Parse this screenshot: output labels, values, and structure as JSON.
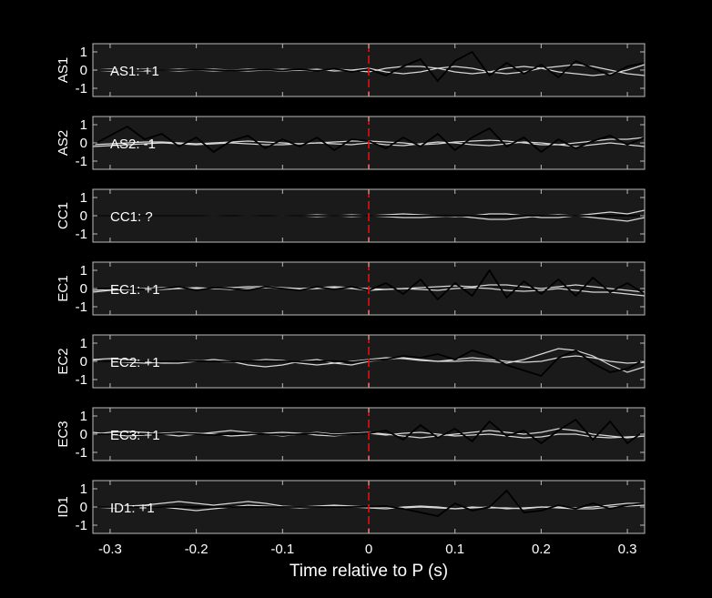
{
  "chart_data": [
    {
      "type": "line",
      "ylabel": "AS1",
      "annotation": "AS1: +1",
      "annotation_color": "#d01010",
      "x": [
        -0.32,
        -0.3,
        -0.28,
        -0.26,
        -0.24,
        -0.22,
        -0.2,
        -0.18,
        -0.16,
        -0.14,
        -0.12,
        -0.1,
        -0.08,
        -0.06,
        -0.04,
        -0.02,
        0,
        0.02,
        0.04,
        0.06,
        0.08,
        0.1,
        0.12,
        0.14,
        0.16,
        0.18,
        0.2,
        0.22,
        0.24,
        0.26,
        0.28,
        0.3,
        0.32
      ],
      "xlim": [
        -0.32,
        0.32
      ],
      "ylim": [
        -1.45,
        1.45
      ],
      "yticks": [
        -1,
        0,
        1
      ],
      "vline": 0,
      "series": [
        {
          "color": "#d8d8d8",
          "values": [
            0,
            0.05,
            0,
            -0.05,
            0,
            0.05,
            0,
            -0.05,
            0,
            0.05,
            0,
            -0.05,
            0,
            0.05,
            -0.05,
            0,
            0.1,
            -0.1,
            -0.2,
            -0.1,
            0.1,
            0.2,
            0.1,
            -0.1,
            -0.2,
            -0.1,
            0.1,
            0.2,
            0.3,
            0.2,
            0,
            -0.2,
            -0.3
          ]
        },
        {
          "color": "#d8d8d8",
          "values": [
            0,
            -0.05,
            0,
            0.05,
            0,
            -0.05,
            0,
            0.05,
            0,
            -0.05,
            0,
            0.05,
            0,
            -0.05,
            0.05,
            0,
            -0.1,
            0.1,
            0.2,
            0.2,
            0.1,
            -0.1,
            -0.2,
            -0.1,
            0.1,
            0.2,
            0.1,
            -0.1,
            -0.2,
            -0.3,
            -0.2,
            0,
            0.3
          ]
        },
        {
          "color": "#000000",
          "values": [
            0,
            0,
            0,
            0,
            0,
            0,
            0.02,
            0,
            -0.02,
            0,
            0.03,
            -0.02,
            0.05,
            -0.05,
            0.08,
            -0.1,
            0.05,
            -0.3,
            0.2,
            0.6,
            -0.6,
            0.5,
            1.0,
            -0.3,
            0.4,
            -0.2,
            0.3,
            -0.4,
            0.5,
            0.1,
            -0.3,
            0.2,
            0.4
          ]
        }
      ]
    },
    {
      "type": "line",
      "ylabel": "AS2",
      "annotation": "AS2: -1",
      "annotation_color": "#1818c8",
      "x": [
        -0.32,
        -0.3,
        -0.28,
        -0.26,
        -0.24,
        -0.22,
        -0.2,
        -0.18,
        -0.16,
        -0.14,
        -0.12,
        -0.1,
        -0.08,
        -0.06,
        -0.04,
        -0.02,
        0,
        0.02,
        0.04,
        0.06,
        0.08,
        0.1,
        0.12,
        0.14,
        0.16,
        0.18,
        0.2,
        0.22,
        0.24,
        0.26,
        0.28,
        0.3,
        0.32
      ],
      "xlim": [
        -0.32,
        0.32
      ],
      "ylim": [
        -1.45,
        1.45
      ],
      "yticks": [
        -1,
        0,
        1
      ],
      "vline": 0,
      "series": [
        {
          "color": "#d8d8d8",
          "values": [
            -0.1,
            -0.05,
            0,
            0.05,
            0.05,
            0,
            -0.05,
            0,
            0.05,
            0.1,
            0.05,
            0,
            -0.05,
            0,
            0.05,
            0.1,
            0.1,
            0.05,
            0,
            -0.1,
            -0.05,
            0.05,
            0.1,
            0.15,
            0.1,
            0,
            -0.1,
            -0.1,
            0,
            0.1,
            0.2,
            0.2,
            0.3
          ]
        },
        {
          "color": "#d8d8d8",
          "values": [
            -0.2,
            -0.15,
            -0.1,
            -0.05,
            0,
            -0.05,
            -0.1,
            -0.05,
            0,
            -0.05,
            -0.1,
            -0.1,
            -0.05,
            0,
            -0.05,
            -0.1,
            0,
            -0.1,
            -0.15,
            -0.05,
            0.05,
            0,
            -0.1,
            -0.15,
            -0.05,
            0.05,
            0,
            -0.1,
            -0.2,
            -0.1,
            0,
            -0.1,
            -0.2
          ]
        },
        {
          "color": "#000000",
          "values": [
            -0.1,
            0.4,
            0.9,
            0.2,
            0.5,
            -0.2,
            0.3,
            -0.5,
            0.1,
            0.4,
            -0.3,
            0.2,
            -0.2,
            0.3,
            -0.4,
            0.2,
            0.1,
            -0.3,
            0.3,
            -0.2,
            0.5,
            -0.4,
            0.3,
            0.8,
            -0.2,
            0.3,
            -0.5,
            0.2,
            -0.3,
            0.1,
            0.4,
            -0.1,
            0.3
          ]
        }
      ]
    },
    {
      "type": "line",
      "ylabel": "CC1",
      "annotation": "CC1: ?",
      "annotation_color": "#8c8c8c",
      "x": [
        -0.32,
        -0.3,
        -0.28,
        -0.26,
        -0.24,
        -0.22,
        -0.2,
        -0.18,
        -0.16,
        -0.14,
        -0.12,
        -0.1,
        -0.08,
        -0.06,
        -0.04,
        -0.02,
        0,
        0.02,
        0.04,
        0.06,
        0.08,
        0.1,
        0.12,
        0.14,
        0.16,
        0.18,
        0.2,
        0.22,
        0.24,
        0.26,
        0.28,
        0.3,
        0.32
      ],
      "xlim": [
        -0.32,
        0.32
      ],
      "ylim": [
        -1.45,
        1.45
      ],
      "yticks": [
        -1,
        0,
        1
      ],
      "vline": 0,
      "series": [
        {
          "color": "#d8d8d8",
          "values": [
            0,
            0,
            0,
            0,
            0,
            0,
            0,
            0.02,
            0,
            -0.02,
            0,
            0.02,
            0,
            0.05,
            0,
            0.05,
            0,
            0.05,
            0.1,
            0.05,
            0,
            -0.05,
            0,
            0.1,
            0.1,
            0,
            -0.1,
            -0.1,
            0,
            0.1,
            0.2,
            0.1,
            0.3
          ]
        },
        {
          "color": "#d8d8d8",
          "values": [
            0,
            0,
            0,
            0,
            0,
            0,
            0,
            -0.02,
            0,
            0.02,
            0,
            -0.02,
            0,
            -0.05,
            0,
            -0.05,
            0,
            -0.05,
            -0.1,
            -0.1,
            -0.05,
            0,
            -0.1,
            -0.2,
            -0.2,
            -0.1,
            0,
            0.05,
            0,
            -0.1,
            -0.2,
            -0.3,
            -0.1
          ]
        },
        {
          "color": "#000000",
          "values": [
            0,
            0,
            0,
            0,
            0,
            0,
            0,
            0,
            0,
            0,
            0,
            0,
            0,
            0,
            0,
            0,
            0,
            0,
            0,
            0,
            0,
            0,
            0,
            0,
            0,
            0,
            0,
            0,
            0,
            0,
            0,
            0,
            0
          ]
        }
      ]
    },
    {
      "type": "line",
      "ylabel": "EC1",
      "annotation": "EC1: +1",
      "annotation_color": "#d01010",
      "x": [
        -0.32,
        -0.3,
        -0.28,
        -0.26,
        -0.24,
        -0.22,
        -0.2,
        -0.18,
        -0.16,
        -0.14,
        -0.12,
        -0.1,
        -0.08,
        -0.06,
        -0.04,
        -0.02,
        0,
        0.02,
        0.04,
        0.06,
        0.08,
        0.1,
        0.12,
        0.14,
        0.16,
        0.18,
        0.2,
        0.22,
        0.24,
        0.26,
        0.28,
        0.3,
        0.32
      ],
      "xlim": [
        -0.32,
        0.32
      ],
      "ylim": [
        -1.45,
        1.45
      ],
      "yticks": [
        -1,
        0,
        1
      ],
      "vline": 0,
      "series": [
        {
          "color": "#d8d8d8",
          "values": [
            -0.1,
            -0.05,
            0,
            0,
            0.05,
            0.05,
            0,
            0,
            0.05,
            0.1,
            0.1,
            0.05,
            0,
            0.05,
            0.1,
            0.05,
            0,
            -0.05,
            0,
            0.05,
            0.1,
            0.15,
            0.1,
            0.2,
            0.2,
            0.1,
            0,
            0.1,
            0.2,
            0.1,
            0,
            -0.1,
            -0.2
          ]
        },
        {
          "color": "#d8d8d8",
          "values": [
            -0.2,
            -0.1,
            -0.05,
            0,
            -0.05,
            0,
            0.05,
            0,
            -0.05,
            0,
            0.05,
            0,
            -0.05,
            0,
            0.05,
            0,
            -0.1,
            -0.05,
            0,
            -0.05,
            -0.1,
            0,
            0.05,
            0,
            -0.1,
            -0.15,
            -0.1,
            0,
            -0.1,
            -0.2,
            -0.2,
            -0.3,
            -0.4
          ]
        },
        {
          "color": "#000000",
          "values": [
            0,
            0,
            0,
            -0.05,
            0,
            0.1,
            -0.1,
            0.05,
            0,
            -0.1,
            0.1,
            0,
            -0.1,
            0.1,
            -0.05,
            0.1,
            -0.1,
            0.3,
            -0.3,
            0.5,
            -0.6,
            0.3,
            -0.4,
            1.0,
            -0.5,
            0.4,
            -0.3,
            0.5,
            -0.4,
            0.6,
            -0.2,
            0.3,
            -0.3
          ]
        }
      ]
    },
    {
      "type": "line",
      "ylabel": "EC2",
      "annotation": "EC2: +1",
      "annotation_color": "#d01010",
      "x": [
        -0.32,
        -0.3,
        -0.28,
        -0.26,
        -0.24,
        -0.22,
        -0.2,
        -0.18,
        -0.16,
        -0.14,
        -0.12,
        -0.1,
        -0.08,
        -0.06,
        -0.04,
        -0.02,
        0,
        0.02,
        0.04,
        0.06,
        0.08,
        0.1,
        0.12,
        0.14,
        0.16,
        0.18,
        0.2,
        0.22,
        0.24,
        0.26,
        0.28,
        0.3,
        0.32
      ],
      "xlim": [
        -0.32,
        0.32
      ],
      "ylim": [
        -1.45,
        1.45
      ],
      "yticks": [
        -1,
        0,
        1
      ],
      "vline": 0,
      "series": [
        {
          "color": "#d8d8d8",
          "values": [
            0.1,
            0.15,
            0.1,
            0,
            -0.1,
            -0.1,
            0,
            0.1,
            0,
            -0.2,
            -0.3,
            -0.2,
            0,
            0.1,
            -0.1,
            -0.2,
            0,
            0.1,
            0.2,
            0.1,
            0,
            0,
            0.05,
            0,
            -0.1,
            0.1,
            0.4,
            0.7,
            0.6,
            0.3,
            -0.2,
            -0.6,
            -0.3
          ]
        },
        {
          "color": "#d8d8d8",
          "values": [
            0.05,
            0,
            -0.05,
            -0.1,
            -0.05,
            0,
            0.05,
            0,
            -0.05,
            0,
            0.1,
            0.05,
            -0.1,
            -0.2,
            -0.1,
            0,
            0.1,
            0.2,
            0.15,
            0.05,
            0,
            0.1,
            0.2,
            0.1,
            0,
            -0.05,
            0,
            0.2,
            0.3,
            0.2,
            0,
            -0.1,
            -0.05
          ]
        },
        {
          "color": "#000000",
          "values": [
            0,
            0,
            0,
            0,
            -0.02,
            0,
            0.02,
            0,
            -0.02,
            0,
            0.02,
            0,
            -0.02,
            0,
            0.02,
            -0.05,
            0.05,
            0.1,
            0.3,
            0.2,
            0.4,
            0.1,
            0.6,
            0.3,
            -0.2,
            -0.5,
            -0.8,
            0.2,
            0.6,
            -0.1,
            -0.6,
            -0.4,
            0.1
          ]
        }
      ]
    },
    {
      "type": "line",
      "ylabel": "EC3",
      "annotation": "EC3: +1",
      "annotation_color": "#d01010",
      "x": [
        -0.32,
        -0.3,
        -0.28,
        -0.26,
        -0.24,
        -0.22,
        -0.2,
        -0.18,
        -0.16,
        -0.14,
        -0.12,
        -0.1,
        -0.08,
        -0.06,
        -0.04,
        -0.02,
        0,
        0.02,
        0.04,
        0.06,
        0.08,
        0.1,
        0.12,
        0.14,
        0.16,
        0.18,
        0.2,
        0.22,
        0.24,
        0.26,
        0.28,
        0.3,
        0.32
      ],
      "xlim": [
        -0.32,
        0.32
      ],
      "ylim": [
        -1.45,
        1.45
      ],
      "yticks": [
        -1,
        0,
        1
      ],
      "vline": 0,
      "series": [
        {
          "color": "#d8d8d8",
          "values": [
            0,
            0.1,
            0.15,
            0.1,
            0,
            -0.1,
            0,
            0.1,
            0.2,
            0.1,
            0,
            -0.1,
            0,
            0.1,
            0,
            0.05,
            0.1,
            0,
            -0.1,
            -0.2,
            -0.1,
            0,
            0.1,
            0.2,
            0.1,
            0,
            0.1,
            0.3,
            0.2,
            0,
            -0.1,
            -0.2,
            -0.1
          ]
        },
        {
          "color": "#d8d8d8",
          "values": [
            0.1,
            0,
            -0.1,
            -0.05,
            0.05,
            0.1,
            0.05,
            0,
            -0.1,
            -0.05,
            0.05,
            0.1,
            0.05,
            -0.05,
            -0.1,
            0,
            0.05,
            -0.05,
            0.05,
            0.1,
            0,
            -0.1,
            -0.05,
            0,
            -0.1,
            -0.2,
            -0.15,
            0,
            0,
            -0.15,
            -0.2,
            -0.15,
            -0.1
          ]
        },
        {
          "color": "#000000",
          "values": [
            0,
            0,
            0,
            0,
            0,
            0.05,
            0,
            -0.05,
            0,
            0.05,
            0,
            -0.05,
            0,
            0.05,
            -0.05,
            0,
            0.05,
            0.2,
            -0.3,
            0.5,
            -0.2,
            0.3,
            -0.4,
            0.7,
            -0.1,
            0.2,
            -0.5,
            0.2,
            0.8,
            -0.3,
            0.7,
            -0.5,
            0.2
          ]
        }
      ]
    },
    {
      "type": "line",
      "ylabel": "ID1",
      "annotation": "ID1: +1",
      "annotation_color": "#d01010",
      "x": [
        -0.32,
        -0.3,
        -0.28,
        -0.26,
        -0.24,
        -0.22,
        -0.2,
        -0.18,
        -0.16,
        -0.14,
        -0.12,
        -0.1,
        -0.08,
        -0.06,
        -0.04,
        -0.02,
        0,
        0.02,
        0.04,
        0.06,
        0.08,
        0.1,
        0.12,
        0.14,
        0.16,
        0.18,
        0.2,
        0.22,
        0.24,
        0.26,
        0.28,
        0.3,
        0.32
      ],
      "xlim": [
        -0.32,
        0.32
      ],
      "ylim": [
        -1.45,
        1.45
      ],
      "yticks": [
        -1,
        0,
        1
      ],
      "vline": 0,
      "xticks": [
        -0.3,
        -0.2,
        -0.1,
        0,
        0.1,
        0.2,
        0.3
      ],
      "xlabel": "Time relative to P (s)",
      "series": [
        {
          "color": "#d8d8d8",
          "values": [
            0,
            0,
            0.05,
            0.1,
            0.2,
            0.3,
            0.2,
            0.1,
            0.2,
            0.3,
            0.2,
            0.05,
            0,
            0.05,
            0.1,
            0.05,
            0,
            0,
            -0.05,
            0,
            -0.05,
            -0.1,
            0,
            -0.05,
            -0.05,
            -0.1,
            0,
            0,
            -0.05,
            0,
            0.1,
            0.2,
            0.2
          ]
        },
        {
          "color": "#d8d8d8",
          "values": [
            0,
            -0.05,
            0,
            0.05,
            0,
            -0.1,
            -0.2,
            -0.1,
            0,
            0.1,
            0.05,
            0,
            -0.05,
            0,
            0.05,
            0,
            -0.05,
            -0.1,
            0,
            0.05,
            0,
            -0.1,
            -0.05,
            0,
            -0.1,
            -0.05,
            0,
            -0.05,
            -0.1,
            -0.1,
            0,
            0.05,
            0.1
          ]
        },
        {
          "color": "#000000",
          "values": [
            0,
            0,
            0,
            0,
            0,
            0,
            0,
            0,
            0,
            0,
            0,
            0,
            0,
            0,
            0,
            0,
            0.02,
            0.05,
            -0.1,
            -0.3,
            -0.5,
            0.2,
            -0.2,
            0,
            0.9,
            -0.3,
            -0.2,
            0.1,
            -0.1,
            0.2,
            -0.1,
            0.1,
            0.2
          ]
        }
      ]
    }
  ]
}
